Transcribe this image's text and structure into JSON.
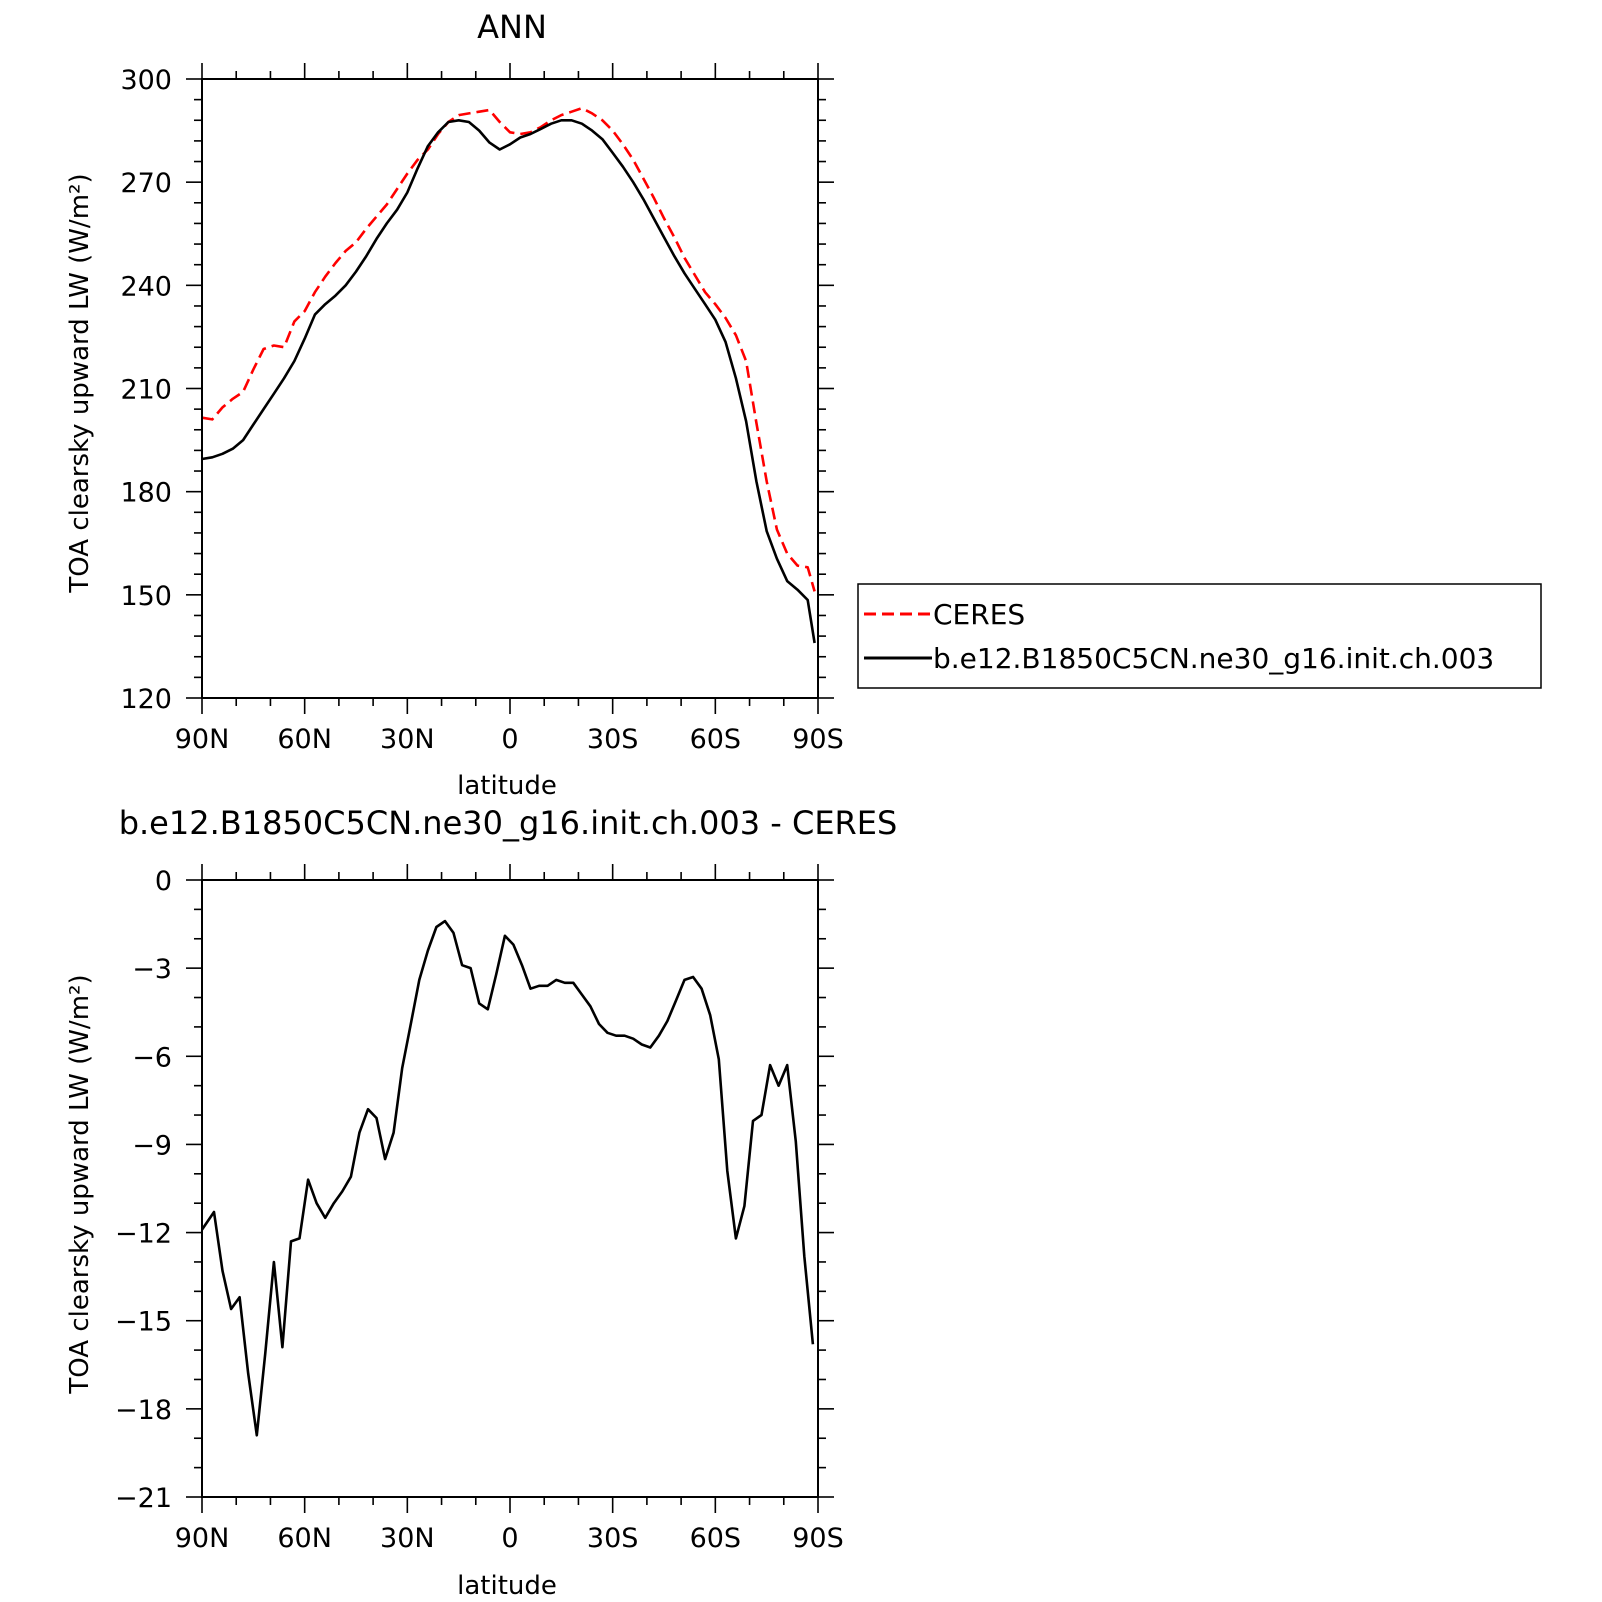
{
  "colors": {
    "ceres": "#ff0000",
    "model": "#000000",
    "axes": "#000000",
    "background": "#ffffff"
  },
  "chart_data": [
    {
      "type": "line",
      "title": "ANN",
      "xlabel": "latitude",
      "ylabel": "TOA clearsky upward LW (W/m²)",
      "xlim": [
        90,
        -90
      ],
      "ylim": [
        120,
        300
      ],
      "x_ticks": [
        90,
        60,
        30,
        0,
        -30,
        -60,
        -90
      ],
      "x_tick_labels": [
        "90N",
        "60N",
        "30N",
        "0",
        "30S",
        "60S",
        "90S"
      ],
      "y_ticks": [
        120,
        150,
        180,
        210,
        240,
        270,
        300
      ],
      "y_tick_labels": [
        "120",
        "150",
        "180",
        "210",
        "240",
        "270",
        "300"
      ],
      "legend": {
        "position": "right",
        "entries": [
          "CERES",
          "b.e12.B1850C5CN.ne30_g16.init.ch.003"
        ]
      },
      "series": [
        {
          "name": "CERES",
          "style": "dashed",
          "color": "#ff0000",
          "x": [
            90,
            87,
            84,
            81,
            78,
            75,
            72,
            69,
            66,
            63,
            60,
            57,
            54,
            51,
            48,
            45,
            42,
            39,
            36,
            33,
            30,
            27,
            24,
            21,
            18,
            15,
            12,
            9,
            6,
            3,
            0,
            -3,
            -6,
            -9,
            -12,
            -15,
            -18,
            -21,
            -24,
            -27,
            -30,
            -33,
            -36,
            -39,
            -42,
            -45,
            -48,
            -51,
            -54,
            -57,
            -60,
            -63,
            -66,
            -69,
            -72,
            -75,
            -78,
            -81,
            -84,
            -87,
            -89
          ],
          "y": [
            201.5,
            201.0,
            204.5,
            207.0,
            209.0,
            215.5,
            221.5,
            222.5,
            222.0,
            229.5,
            232.5,
            238.0,
            242.5,
            246.5,
            250.0,
            252.5,
            256.5,
            260.0,
            263.5,
            268.0,
            272.5,
            276.5,
            279.5,
            284.0,
            287.5,
            289.5,
            290.0,
            290.5,
            291.0,
            287.5,
            284.5,
            284.0,
            284.5,
            286.0,
            288.0,
            289.5,
            290.5,
            291.5,
            290.0,
            288.0,
            285.0,
            281.0,
            276.5,
            271.0,
            265.5,
            259.5,
            254.0,
            248.0,
            243.0,
            238.0,
            234.5,
            230.5,
            225.5,
            218.0,
            200.0,
            183.0,
            169.0,
            162.0,
            158.5,
            158.0,
            151.0
          ]
        },
        {
          "name": "b.e12.B1850C5CN.ne30_g16.init.ch.003",
          "style": "solid",
          "color": "#000000",
          "x": [
            90,
            87,
            84,
            81,
            78,
            75,
            72,
            69,
            66,
            63,
            60,
            57,
            54,
            51,
            48,
            45,
            42,
            39,
            36,
            33,
            30,
            27,
            24,
            21,
            18,
            15,
            12,
            9,
            6,
            3,
            0,
            -3,
            -6,
            -9,
            -12,
            -15,
            -18,
            -21,
            -24,
            -27,
            -30,
            -33,
            -36,
            -39,
            -42,
            -45,
            -48,
            -51,
            -54,
            -57,
            -60,
            -63,
            -66,
            -69,
            -72,
            -75,
            -78,
            -81,
            -84,
            -87,
            -89
          ],
          "y": [
            189.5,
            190.0,
            191.0,
            192.5,
            195.0,
            199.5,
            204.0,
            208.5,
            213.0,
            218.0,
            224.5,
            231.5,
            234.5,
            237.0,
            240.0,
            244.0,
            248.5,
            253.5,
            258.0,
            262.0,
            267.0,
            274.0,
            280.5,
            284.5,
            287.5,
            288.0,
            287.5,
            285.0,
            281.5,
            279.5,
            281.0,
            283.0,
            284.0,
            285.5,
            287.0,
            288.0,
            288.0,
            287.0,
            285.0,
            282.5,
            278.5,
            274.5,
            270.0,
            265.0,
            259.5,
            254.0,
            248.5,
            243.5,
            239.0,
            234.5,
            230.0,
            223.5,
            213.0,
            200.5,
            183.0,
            168.5,
            160.5,
            154.0,
            151.5,
            148.5,
            136.0
          ]
        }
      ]
    },
    {
      "type": "line",
      "title": "b.e12.B1850C5CN.ne30_g16.init.ch.003 - CERES",
      "xlabel": "latitude",
      "ylabel": "TOA clearsky upward LW (W/m²)",
      "xlim": [
        90,
        -90
      ],
      "ylim": [
        -21,
        0
      ],
      "x_ticks": [
        90,
        60,
        30,
        0,
        -30,
        -60,
        -90
      ],
      "x_tick_labels": [
        "90N",
        "60N",
        "30N",
        "0",
        "30S",
        "60S",
        "90S"
      ],
      "y_ticks": [
        0,
        -3,
        -6,
        -9,
        -12,
        -15,
        -18,
        -21
      ],
      "y_tick_labels": [
        "0",
        "-3",
        "-6",
        "-9",
        "-12",
        "-15",
        "-18",
        "-21"
      ],
      "series": [
        {
          "style": "solid",
          "color": "#000000",
          "x": [
            90,
            86.5,
            84,
            81.5,
            79,
            76.5,
            74,
            71.5,
            69,
            66.5,
            64,
            61.5,
            59,
            56.5,
            54,
            51.5,
            49,
            46.5,
            44,
            41.5,
            39,
            36.5,
            34,
            31.5,
            29,
            26.5,
            24,
            21.5,
            19,
            16.5,
            14,
            11.5,
            9,
            6.5,
            4,
            1.5,
            -1,
            -3.5,
            -6,
            -8.5,
            -11,
            -13.5,
            -16,
            -18.5,
            -21,
            -23.5,
            -26,
            -28.5,
            -31,
            -33.5,
            -36,
            -38.5,
            -41,
            -43.5,
            -46,
            -48.5,
            -51,
            -53.5,
            -56,
            -58.5,
            -61,
            -63.5,
            -66,
            -68.5,
            -71,
            -73.5,
            -76,
            -78.5,
            -81,
            -83.5,
            -86,
            -88.5
          ],
          "y": [
            -11.9,
            -11.3,
            -13.3,
            -14.6,
            -14.2,
            -16.8,
            -18.9,
            -16.1,
            -13.0,
            -15.9,
            -12.3,
            -12.2,
            -10.2,
            -11.0,
            -11.5,
            -11.0,
            -10.6,
            -10.1,
            -8.6,
            -7.8,
            -8.1,
            -9.5,
            -8.6,
            -6.4,
            -4.9,
            -3.4,
            -2.4,
            -1.6,
            -1.4,
            -1.8,
            -2.9,
            -3.0,
            -4.2,
            -4.4,
            -3.2,
            -1.9,
            -2.2,
            -2.9,
            -3.7,
            -3.6,
            -3.6,
            -3.4,
            -3.5,
            -3.5,
            -3.9,
            -4.3,
            -4.9,
            -5.2,
            -5.3,
            -5.3,
            -5.4,
            -5.6,
            -5.7,
            -5.3,
            -4.8,
            -4.1,
            -3.4,
            -3.3,
            -3.7,
            -4.6,
            -6.1,
            -9.9,
            -12.2,
            -11.1,
            -8.2,
            -8.0,
            -6.3,
            -7.0,
            -6.3,
            -8.9,
            -12.8,
            -15.8
          ]
        }
      ]
    }
  ]
}
